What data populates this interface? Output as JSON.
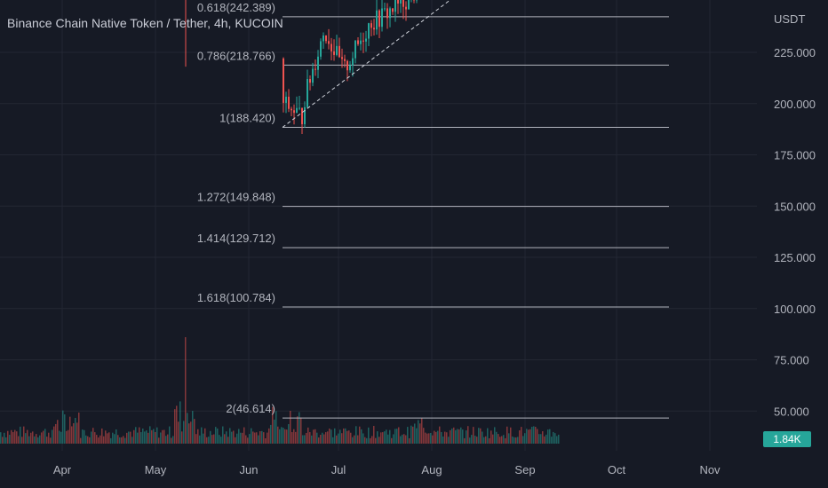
{
  "chart_data": {
    "type": "candlestick",
    "title": "Binance Chain Native Token / Tether, 4h, KUCOIN",
    "price_axis_unit": "USDT",
    "x_axis_ticks": [
      "Apr",
      "May",
      "Jun",
      "Jul",
      "Aug",
      "Sep",
      "Oct",
      "Nov"
    ],
    "y_axis_ticks": [
      225,
      200,
      175,
      150,
      125,
      100,
      75,
      50
    ],
    "y_tick_labels": [
      "225.000",
      "200.000",
      "175.000",
      "150.000",
      "125.000",
      "100.000",
      "75.000",
      "50.000"
    ],
    "fib_levels": [
      {
        "ratio": "0.618",
        "price": 242.389,
        "label": "0.618(242.389)"
      },
      {
        "ratio": "0.786",
        "price": 218.766,
        "label": "0.786(218.766)"
      },
      {
        "ratio": "1",
        "price": 188.42,
        "label": "1(188.420)"
      },
      {
        "ratio": "1.272",
        "price": 149.848,
        "label": "1.272(149.848)"
      },
      {
        "ratio": "1.414",
        "price": 129.712,
        "label": "1.414(129.712)"
      },
      {
        "ratio": "1.618",
        "price": 100.784,
        "label": "1.618(100.784)"
      },
      {
        "ratio": "2",
        "price": 46.614,
        "label": "2(46.614)"
      }
    ],
    "trendline": {
      "from": [
        "Jun",
        188.4
      ],
      "to": [
        "Jul",
        250
      ]
    },
    "volume_badge": "1.84K",
    "colors": {
      "background": "#161a25",
      "grid": "#232733",
      "fib_line": "#b2b5be",
      "up": "#26a69a",
      "down": "#ef5350",
      "text": "#b2b5be",
      "badge": "#26a69a"
    },
    "grid": true
  }
}
